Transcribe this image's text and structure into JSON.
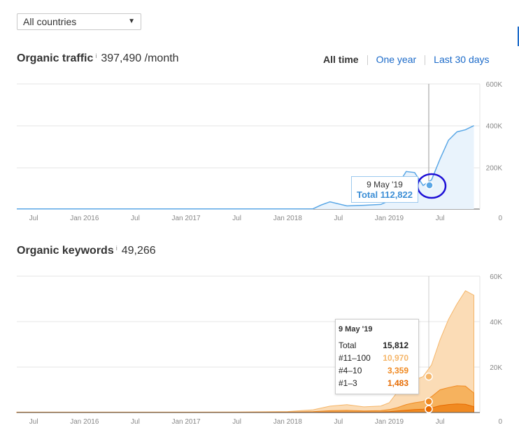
{
  "country_select": {
    "value": "All countries"
  },
  "traffic": {
    "title": "Organic traffic",
    "info": "i",
    "value": "397,490 /month",
    "range_tabs": [
      {
        "label": "All time",
        "active": true
      },
      {
        "label": "One year",
        "active": false
      },
      {
        "label": "Last 30 days",
        "active": false
      }
    ],
    "y_ticks": [
      "600K",
      "400K",
      "200K",
      "0"
    ],
    "x_ticks": [
      "Jul",
      "Jan 2016",
      "Jul",
      "Jan 2017",
      "Jul",
      "Jan 2018",
      "Jul",
      "Jan 2019",
      "Jul"
    ],
    "tooltip": {
      "date": "9 May '19",
      "total_label": "Total",
      "total_value": "112,822"
    }
  },
  "keywords": {
    "title": "Organic keywords",
    "info": "i",
    "value": "49,266",
    "y_ticks": [
      "60K",
      "40K",
      "20K",
      "0"
    ],
    "x_ticks": [
      "Jul",
      "Jan 2016",
      "Jul",
      "Jan 2017",
      "Jul",
      "Jan 2018",
      "Jul",
      "Jan 2019",
      "Jul"
    ],
    "tooltip": {
      "date": "9 May '19",
      "rows": [
        {
          "label": "Total",
          "value": "15,812",
          "color": "#222222"
        },
        {
          "label": "#11–100",
          "value": "10,970",
          "color": "#f5b66a"
        },
        {
          "label": "#4–10",
          "value": "3,359",
          "color": "#f08a22"
        },
        {
          "label": "#1–3",
          "value": "1,483",
          "color": "#e66a00"
        }
      ]
    }
  },
  "chart_data": [
    {
      "type": "area",
      "title": "Organic traffic",
      "x": [
        "2015-05",
        "2015-07",
        "2016-01",
        "2016-07",
        "2017-01",
        "2017-07",
        "2018-01",
        "2018-04",
        "2018-05",
        "2018-06",
        "2018-08",
        "2018-10",
        "2018-12",
        "2019-01",
        "2019-02",
        "2019-03",
        "2019-04",
        "2019-05",
        "2019-06",
        "2019-07",
        "2019-08",
        "2019-09",
        "2019-10",
        "2019-11"
      ],
      "series": [
        {
          "values": [
            1000,
            1000,
            1000,
            1000,
            1000,
            1000,
            1000,
            1500,
            20000,
            35000,
            15000,
            18000,
            22000,
            40000,
            115000,
            180000,
            175000,
            112822,
            140000,
            240000,
            330000,
            370000,
            380000,
            400000
          ]
        }
      ],
      "ylim": [
        0,
        600000
      ],
      "color": "#5aa7e6"
    },
    {
      "type": "area",
      "title": "Organic keywords",
      "x": [
        "2015-05",
        "2015-07",
        "2016-01",
        "2016-07",
        "2017-01",
        "2017-07",
        "2018-01",
        "2018-04",
        "2018-06",
        "2018-08",
        "2018-10",
        "2018-12",
        "2019-01",
        "2019-02",
        "2019-03",
        "2019-04",
        "2019-05",
        "2019-06",
        "2019-07",
        "2019-08",
        "2019-09",
        "2019-10",
        "2019-11"
      ],
      "series": [
        {
          "name": "#11–100",
          "values": [
            100,
            100,
            100,
            100,
            100,
            150,
            250,
            800,
            2000,
            2500,
            1800,
            2000,
            3000,
            7000,
            9000,
            10000,
            10970,
            14000,
            22000,
            30000,
            36000,
            42000,
            43000
          ]
        },
        {
          "name": "#4–10",
          "values": [
            50,
            50,
            50,
            50,
            50,
            80,
            120,
            300,
            600,
            700,
            500,
            600,
            900,
            1500,
            2500,
            3000,
            3359,
            5000,
            7000,
            7500,
            8000,
            8000,
            6000
          ]
        },
        {
          "name": "#1–3",
          "values": [
            20,
            20,
            20,
            20,
            20,
            30,
            50,
            100,
            200,
            250,
            200,
            250,
            400,
            700,
            1000,
            1300,
            1483,
            2000,
            3000,
            3500,
            3800,
            3600,
            2600
          ]
        }
      ],
      "ylim": [
        0,
        60000
      ],
      "colors": [
        "#f5b66a",
        "#f08a22",
        "#e66a00"
      ]
    }
  ]
}
